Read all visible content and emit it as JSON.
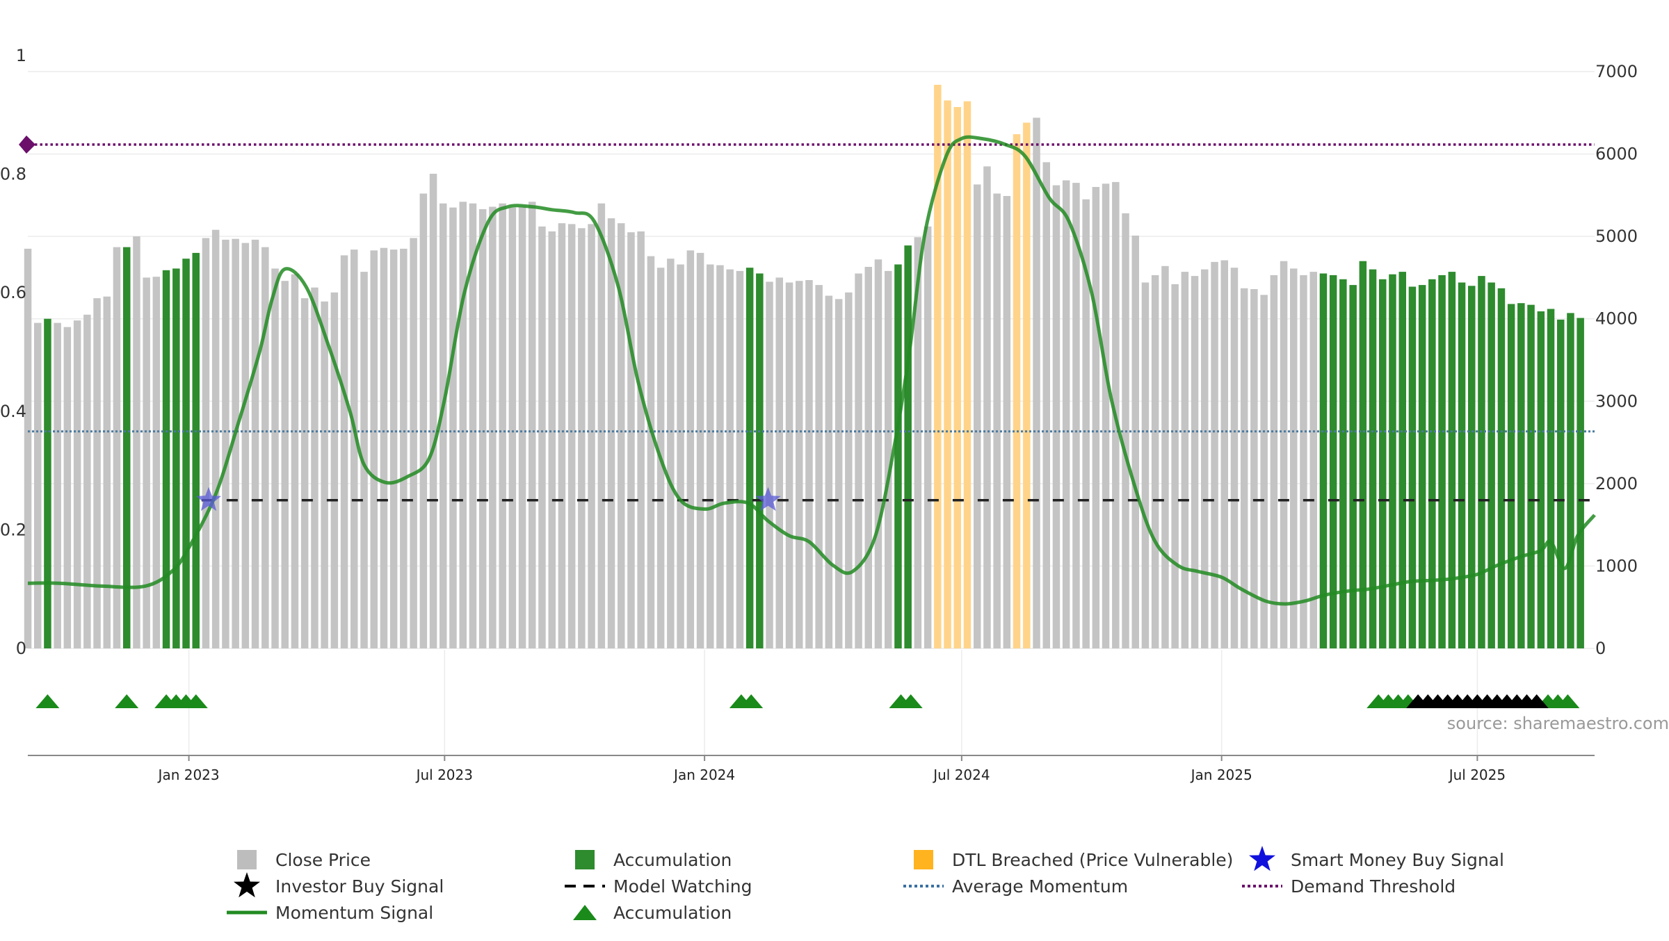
{
  "chart_data": {
    "type": "bar",
    "source": "source: sharemaestro.com",
    "x_range": [
      "2022-09-09",
      "2025-09-22"
    ],
    "y_left": {
      "range": [
        0,
        1
      ],
      "ticks": [
        0,
        0.2,
        0.4,
        0.6,
        0.8,
        1
      ],
      "tick_labels": [
        "0",
        "0.2",
        "0.4",
        "0.6",
        "0.8",
        "1"
      ]
    },
    "y_right": {
      "range": [
        0,
        7000
      ],
      "ticks": [
        0,
        1000,
        2000,
        3000,
        4000,
        5000,
        6000,
        7000
      ],
      "tick_labels": [
        "0",
        "1000",
        "2000",
        "3000",
        "4000",
        "5000",
        "6000",
        "7000"
      ]
    },
    "x_ticks": [
      {
        "date": "2023-01-01",
        "label": "Jan 2023"
      },
      {
        "date": "2023-07-01",
        "label": "Jul 2023"
      },
      {
        "date": "2024-01-01",
        "label": "Jan 2024"
      },
      {
        "date": "2024-07-01",
        "label": "Jul 2024"
      },
      {
        "date": "2025-01-01",
        "label": "Jan 2025"
      },
      {
        "date": "2025-07-01",
        "label": "Jul 2025"
      }
    ],
    "grid": true,
    "colors": {
      "close": "#c4c4c4",
      "accumulation": "#2e8b2e",
      "dtl": "#ffd48a",
      "momentum": "#228b22",
      "average": "#4a7aa0",
      "demand": "#6b0f6b",
      "model_watching": "#222222",
      "star": "#5a5ad8",
      "triangle": "#1a8a1a",
      "investor_triangle": "#000000"
    },
    "bar_start": "2022-09-09",
    "bar_interval_days": 7,
    "close_prices": [
      4850,
      3950,
      4000,
      3950,
      3900,
      3980,
      4050,
      4250,
      4270,
      4870,
      4870,
      5000,
      4500,
      4510,
      4590,
      4610,
      4730,
      4800,
      4980,
      5080,
      4960,
      4970,
      4920,
      4960,
      4870,
      4610,
      4460,
      4540,
      4250,
      4380,
      4210,
      4320,
      4770,
      4840,
      4570,
      4830,
      4860,
      4840,
      4850,
      4980,
      5520,
      5760,
      5400,
      5350,
      5420,
      5400,
      5330,
      5360,
      5400,
      5350,
      5360,
      5420,
      5120,
      5060,
      5160,
      5150,
      5100,
      5150,
      5400,
      5220,
      5160,
      5050,
      5060,
      4760,
      4620,
      4730,
      4660,
      4830,
      4800,
      4660,
      4650,
      4600,
      4580,
      4620,
      4550,
      4450,
      4500,
      4440,
      4460,
      4470,
      4410,
      4280,
      4240,
      4320,
      4550,
      4630,
      4720,
      4580,
      4660,
      4890,
      4990,
      5120,
      6840,
      6650,
      6570,
      6640,
      5630,
      5850,
      5520,
      5490,
      6240,
      6380,
      6440,
      5900,
      5620,
      5680,
      5650,
      5450,
      5600,
      5640,
      5660,
      5280,
      5010,
      4440,
      4530,
      4640,
      4420,
      4570,
      4520,
      4600,
      4690,
      4710,
      4620,
      4370,
      4360,
      4290,
      4530,
      4700,
      4610,
      4530,
      4570,
      4550,
      4530,
      4480,
      4410,
      4700,
      4600,
      4480,
      4540,
      4570,
      4390,
      4410,
      4480,
      4530,
      4570,
      4440,
      4400,
      4520,
      4440,
      4370,
      4180,
      4190,
      4170,
      4090,
      4120,
      3990,
      4070,
      4010
    ],
    "accumulation_bars": [
      2,
      10,
      14,
      15,
      16,
      17,
      73,
      74,
      88,
      89,
      131,
      132,
      133,
      134,
      135,
      136,
      137,
      138,
      139,
      140,
      141,
      142,
      143,
      144,
      145,
      146,
      147,
      148,
      149,
      150,
      151,
      152,
      153,
      154,
      155,
      156,
      157,
      158
    ],
    "dtl_bars": [
      92,
      93,
      94,
      95,
      100,
      101
    ],
    "momentum_signal": {
      "dates": [
        "2022-09-09",
        "2022-10-01",
        "2022-11-01",
        "2022-12-01",
        "2022-12-20",
        "2023-01-01",
        "2023-01-20",
        "2023-02-05",
        "2023-02-20",
        "2023-03-01",
        "2023-03-10",
        "2023-03-25",
        "2023-04-10",
        "2023-04-25",
        "2023-05-05",
        "2023-05-20",
        "2023-06-05",
        "2023-06-20",
        "2023-07-01",
        "2023-07-15",
        "2023-08-01",
        "2023-08-15",
        "2023-09-01",
        "2023-09-15",
        "2023-10-01",
        "2023-10-15",
        "2023-11-01",
        "2023-11-15",
        "2023-12-01",
        "2023-12-15",
        "2024-01-01",
        "2024-01-15",
        "2024-02-01",
        "2024-02-15",
        "2024-03-01",
        "2024-03-15",
        "2024-04-01",
        "2024-04-15",
        "2024-05-01",
        "2024-05-15",
        "2024-05-25",
        "2024-06-05",
        "2024-06-20",
        "2024-07-01",
        "2024-07-15",
        "2024-08-01",
        "2024-08-15",
        "2024-09-01",
        "2024-09-15",
        "2024-10-01",
        "2024-10-15",
        "2024-11-01",
        "2024-11-15",
        "2024-12-01",
        "2024-12-15",
        "2025-01-01",
        "2025-01-15",
        "2025-02-01",
        "2025-02-15",
        "2025-03-01",
        "2025-03-15",
        "2025-04-01",
        "2025-04-15",
        "2025-05-01",
        "2025-05-15",
        "2025-06-01",
        "2025-06-15",
        "2025-07-01",
        "2025-07-15",
        "2025-08-01",
        "2025-08-15",
        "2025-08-22",
        "2025-09-01",
        "2025-09-10",
        "2025-09-22"
      ],
      "values": [
        0.11,
        0.11,
        0.105,
        0.105,
        0.13,
        0.17,
        0.26,
        0.38,
        0.5,
        0.59,
        0.64,
        0.61,
        0.51,
        0.4,
        0.31,
        0.28,
        0.29,
        0.32,
        0.42,
        0.6,
        0.72,
        0.745,
        0.745,
        0.74,
        0.735,
        0.72,
        0.61,
        0.45,
        0.32,
        0.25,
        0.235,
        0.245,
        0.245,
        0.215,
        0.19,
        0.18,
        0.14,
        0.13,
        0.19,
        0.35,
        0.5,
        0.7,
        0.83,
        0.86,
        0.86,
        0.85,
        0.83,
        0.76,
        0.72,
        0.6,
        0.42,
        0.27,
        0.18,
        0.14,
        0.13,
        0.12,
        0.1,
        0.08,
        0.075,
        0.08,
        0.09,
        0.097,
        0.1,
        0.107,
        0.113,
        0.115,
        0.118,
        0.125,
        0.14,
        0.155,
        0.165,
        0.18,
        0.135,
        0.19,
        0.225
      ]
    },
    "average_momentum": 0.366,
    "demand_threshold": 0.85,
    "model_watching_level": 0.25,
    "model_watching_range": [
      "2023-01-10",
      "2025-09-22"
    ],
    "smart_money_signals": [
      {
        "date": "2023-01-15",
        "y": 0.25
      },
      {
        "date": "2024-02-15",
        "y": 0.25
      }
    ],
    "accumulation_markers": [
      "2022-09-23",
      "2022-11-18",
      "2022-12-16",
      "2022-12-23",
      "2022-12-30",
      "2023-01-06",
      "2024-01-27",
      "2024-02-03",
      "2024-05-19",
      "2024-05-26",
      "2025-04-22",
      "2025-04-29",
      "2025-05-06",
      "2025-05-13",
      "2025-08-20",
      "2025-08-27",
      "2025-09-03"
    ],
    "investor_buy_markers": [
      "2025-05-20",
      "2025-05-27",
      "2025-06-03",
      "2025-06-10",
      "2025-06-17",
      "2025-06-24",
      "2025-07-01",
      "2025-07-08",
      "2025-07-15",
      "2025-07-22",
      "2025-07-29",
      "2025-08-05",
      "2025-08-12"
    ],
    "legend": [
      {
        "label": "Close Price",
        "symbol": "square",
        "color": "#bdbdbd"
      },
      {
        "label": "Accumulation",
        "symbol": "square",
        "color": "#2e8b2e"
      },
      {
        "label": "DTL Breached (Price Vulnerable)",
        "symbol": "square",
        "color": "#ffb31f"
      },
      {
        "label": "Smart Money Buy Signal",
        "symbol": "star",
        "color": "#1111dd"
      },
      {
        "label": "Investor Buy Signal",
        "symbol": "star",
        "color": "#000000"
      },
      {
        "label": "Model Watching",
        "symbol": "dash",
        "color": "#000000"
      },
      {
        "label": "Average Momentum",
        "symbol": "dot",
        "color": "#3a6fa0"
      },
      {
        "label": "Demand Threshold",
        "symbol": "dot",
        "color": "#6b0f6b"
      },
      {
        "label": "Momentum Signal",
        "symbol": "line",
        "color": "#228b22"
      },
      {
        "label": "Accumulation",
        "symbol": "triangle",
        "color": "#1a8a1a"
      }
    ]
  }
}
